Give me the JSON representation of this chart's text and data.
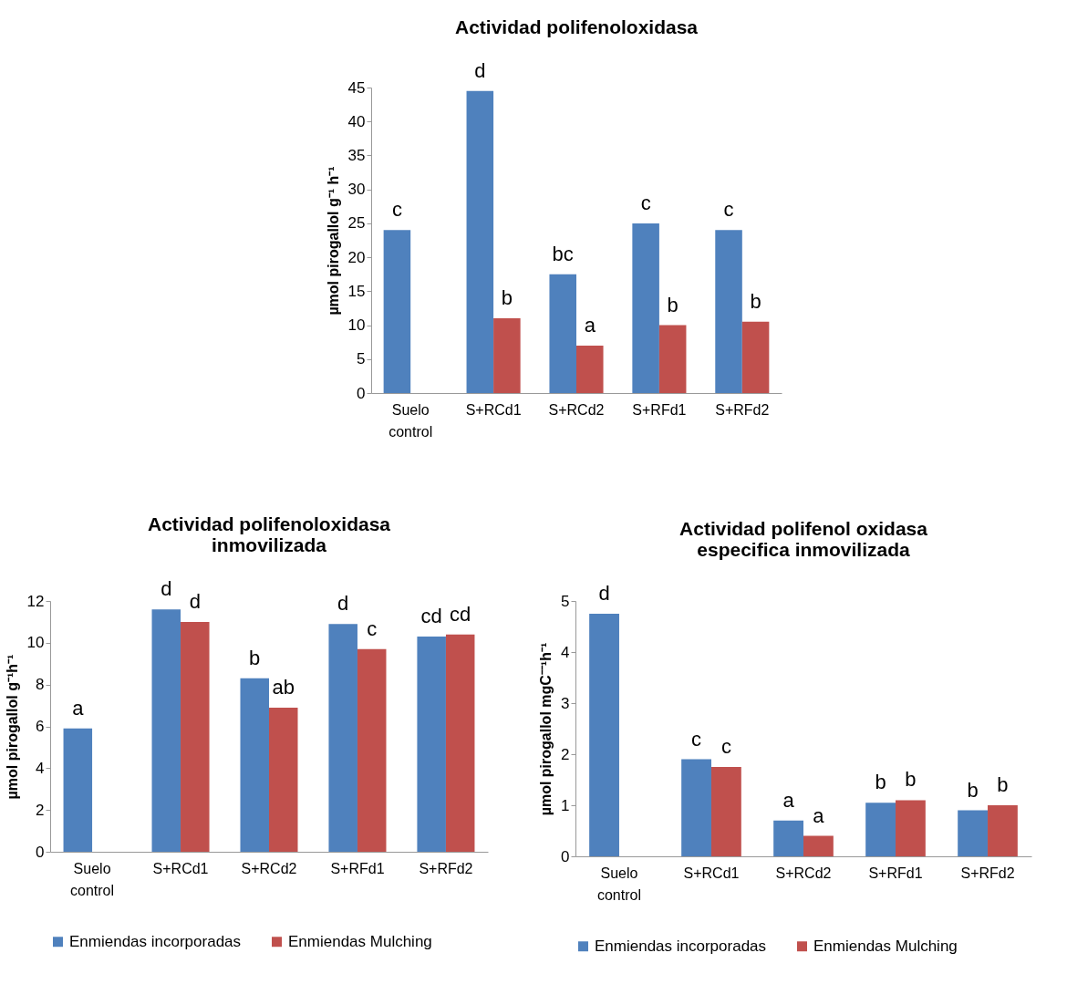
{
  "chart_data": [
    {
      "type": "bar",
      "title": "Actividad polifenoloxidasa",
      "ylabel": "µmol pirogallol g⁻¹ h⁻¹",
      "categories": [
        "Suelo control",
        "S+RCd1",
        "S+RCd2",
        "S+RFd1",
        "S+RFd2"
      ],
      "ylim": [
        0,
        45
      ],
      "yticks": [
        0,
        5,
        10,
        15,
        20,
        25,
        30,
        35,
        40,
        45
      ],
      "grid": false,
      "legend": false,
      "series": [
        {
          "color": "#4f81bd",
          "values": [
            24,
            44.5,
            17.5,
            25,
            24
          ],
          "value_labels": [
            "c",
            "d",
            "bc",
            "c",
            "c"
          ]
        },
        {
          "color": "#c0504d",
          "values": [
            null,
            11,
            7,
            10,
            10.5
          ],
          "value_labels": [
            null,
            "b",
            "a",
            "b",
            "b"
          ]
        }
      ]
    },
    {
      "type": "bar",
      "title": "Actividad polifenoloxidasa\ninmovilizada",
      "ylabel": "µmol pirogallol g⁻¹h⁻¹",
      "categories": [
        "Suelo control",
        "S+RCd1",
        "S+RCd2",
        "S+RFd1",
        "S+RFd2"
      ],
      "ylim": [
        0,
        12
      ],
      "yticks": [
        0,
        2,
        4,
        6,
        8,
        10,
        12
      ],
      "grid": false,
      "legend": "bottom",
      "series": [
        {
          "name": "Enmiendas incorporadas",
          "color": "#4f81bd",
          "values": [
            5.9,
            11.6,
            8.3,
            10.9,
            10.3
          ],
          "value_labels": [
            "a",
            "d",
            "b",
            "d",
            "cd"
          ]
        },
        {
          "name": "Enmiendas Mulching",
          "color": "#c0504d",
          "values": [
            null,
            11.0,
            6.9,
            9.7,
            10.4
          ],
          "value_labels": [
            null,
            "d",
            "ab",
            "c",
            "cd"
          ]
        }
      ]
    },
    {
      "type": "bar",
      "title": "Actividad polifenol oxidasa\nespecifica inmovilizada",
      "ylabel": "µmol pirogallol mgC⁻⁻¹h⁻¹",
      "categories": [
        "Suelo control",
        "S+RCd1",
        "S+RCd2",
        "S+RFd1",
        "S+RFd2"
      ],
      "ylim": [
        0,
        5
      ],
      "yticks": [
        0,
        1,
        2,
        3,
        4,
        5
      ],
      "grid": false,
      "legend": "bottom",
      "series": [
        {
          "name": "Enmiendas incorporadas",
          "color": "#4f81bd",
          "values": [
            4.75,
            1.9,
            0.7,
            1.05,
            0.9
          ],
          "value_labels": [
            "d",
            "c",
            "a",
            "b",
            "b"
          ]
        },
        {
          "name": "Enmiendas Mulching",
          "color": "#c0504d",
          "values": [
            null,
            1.75,
            0.4,
            1.1,
            1.0
          ],
          "value_labels": [
            null,
            "c",
            "a",
            "b",
            "b"
          ]
        }
      ]
    }
  ]
}
